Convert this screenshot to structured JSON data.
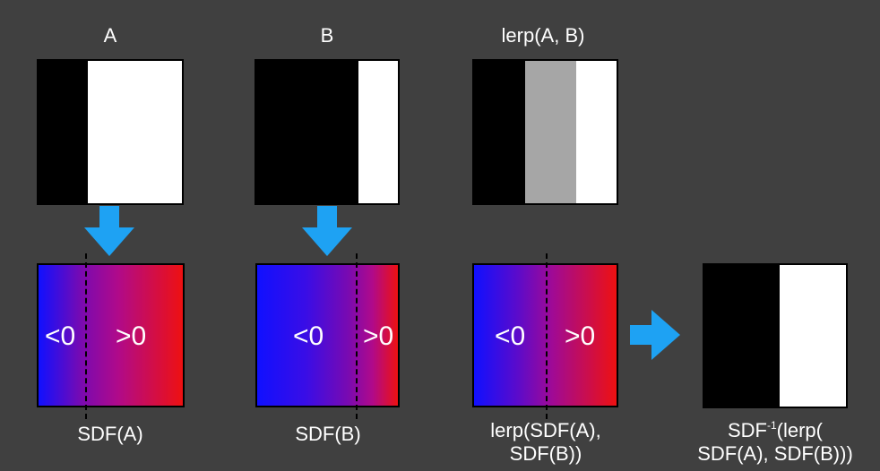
{
  "colors": {
    "background": "#404040",
    "arrow": "#1ea2f3",
    "black": "#000000",
    "white": "#ffffff",
    "gray": "#a6a6a6",
    "negative": "#1010ff",
    "positive": "#ee1111"
  },
  "columns": {
    "a": {
      "title": "A",
      "sdf_caption": "SDF(A)",
      "neg_label": "<0",
      "pos_label": ">0"
    },
    "b": {
      "title": "B",
      "sdf_caption": "SDF(B)",
      "neg_label": "<0",
      "pos_label": ">0"
    },
    "lerp": {
      "title": "lerp(A, B)",
      "sdf_caption_line1": "lerp(SDF(A),",
      "sdf_caption_line2": "SDF(B))",
      "neg_label": "<0",
      "pos_label": ">0"
    },
    "result": {
      "caption_line1_prefix": "SDF",
      "caption_line1_sup": "-1",
      "caption_line1_suffix": "(lerp(",
      "caption_line2": "SDF(A), SDF(B)))"
    }
  },
  "icons": {
    "down_arrow": "arrow-down-icon",
    "right_arrow": "arrow-right-icon"
  }
}
